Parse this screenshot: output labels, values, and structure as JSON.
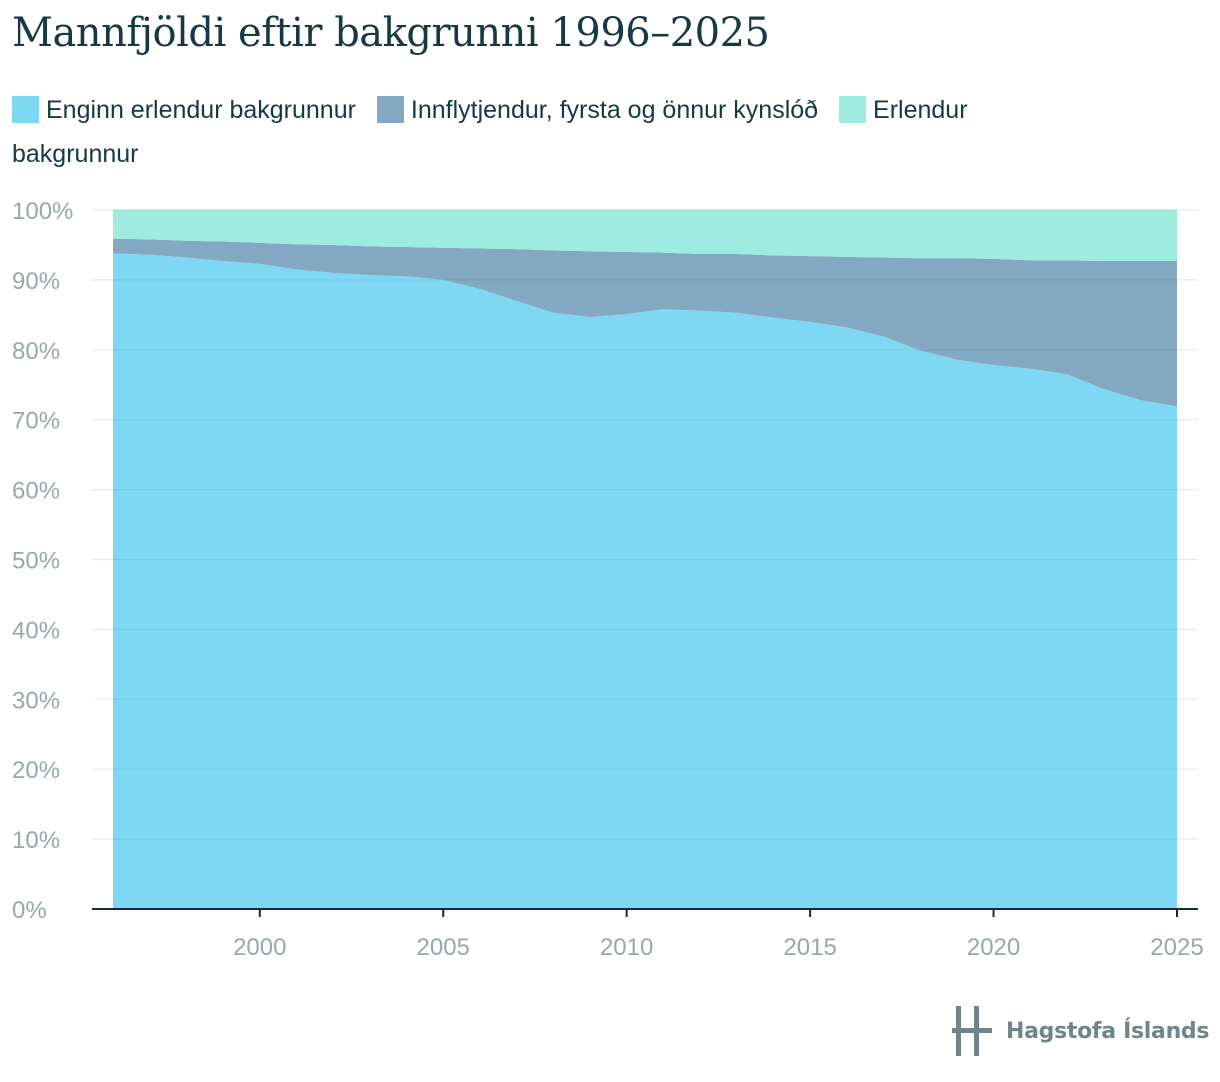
{
  "chart_data": {
    "type": "area",
    "stacked": true,
    "normalized": true,
    "title": "Mannfjöldi eftir bakgrunni 1996–2025",
    "xlabel": "",
    "ylabel": "",
    "xlim": [
      1996,
      2025
    ],
    "ylim": [
      0,
      100
    ],
    "grid": true,
    "legend_position": "top",
    "x": [
      1996,
      1997,
      1998,
      1999,
      2000,
      2001,
      2002,
      2003,
      2004,
      2005,
      2006,
      2007,
      2008,
      2009,
      2010,
      2011,
      2012,
      2013,
      2014,
      2015,
      2016,
      2017,
      2018,
      2019,
      2020,
      2021,
      2022,
      2023,
      2024,
      2025
    ],
    "x_ticks": [
      2000,
      2005,
      2010,
      2015,
      2020,
      2025
    ],
    "x_tick_labels": [
      "2000",
      "2005",
      "2010",
      "2015",
      "2020",
      "2025"
    ],
    "y_ticks": [
      0,
      10,
      20,
      30,
      40,
      50,
      60,
      70,
      80,
      90,
      100
    ],
    "y_tick_labels": [
      "0%",
      "10%",
      "20%",
      "30%",
      "40%",
      "50%",
      "60%",
      "70%",
      "80%",
      "90%",
      "100%"
    ],
    "series": [
      {
        "name": "Enginn erlendur bakgrunnur",
        "color": "#7fd8f3",
        "values": [
          93.8,
          93.6,
          93.2,
          92.7,
          92.3,
          91.5,
          91.0,
          90.7,
          90.5,
          90.0,
          88.7,
          87.0,
          85.3,
          84.7,
          85.1,
          85.8,
          85.6,
          85.3,
          84.6,
          84.0,
          83.2,
          81.9,
          79.9,
          78.6,
          77.8,
          77.3,
          76.5,
          74.4,
          72.8,
          71.9
        ]
      },
      {
        "name": "Innflytjendur, fyrsta og önnur kynslóð",
        "color": "#83a8c1",
        "values": [
          2.1,
          2.2,
          2.4,
          2.8,
          3.0,
          3.6,
          4.0,
          4.1,
          4.2,
          4.6,
          5.8,
          7.4,
          8.9,
          9.4,
          8.9,
          8.1,
          8.1,
          8.4,
          8.9,
          9.4,
          10.1,
          11.3,
          13.2,
          14.5,
          15.2,
          15.5,
          16.3,
          18.3,
          19.9,
          20.8
        ]
      },
      {
        "name": "Erlendur bakgrunnur",
        "color": "#9decdf",
        "values": [
          4.1,
          4.2,
          4.4,
          4.5,
          4.7,
          4.9,
          5.0,
          5.2,
          5.3,
          5.4,
          5.5,
          5.6,
          5.8,
          5.9,
          6.0,
          6.1,
          6.3,
          6.3,
          6.5,
          6.6,
          6.7,
          6.8,
          6.9,
          6.9,
          7.0,
          7.2,
          7.2,
          7.3,
          7.3,
          7.3
        ]
      }
    ]
  },
  "logo": {
    "text": "Hagstofa Íslands"
  },
  "colors": {
    "axis": "#1a2b33",
    "grid": "#e3e8ea",
    "tick_text": "#9aa6ad",
    "title": "#173845"
  }
}
